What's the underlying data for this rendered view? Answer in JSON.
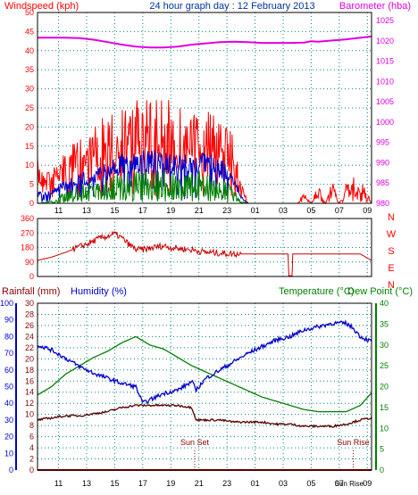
{
  "title": "24 hour graph day : 12 February 2013",
  "colors": {
    "wind_gust": "#ff0000",
    "wind_avg": "#0000cc",
    "wind_low": "#008000",
    "barometer": "#e000e0",
    "direction": "#cc0000",
    "humidity": "#0000cc",
    "temperature": "#008000",
    "dewpoint": "#550000",
    "rainfall": "#aa0000",
    "grid": "#008080",
    "axis_left_top": "#ff0000",
    "axis_left_bottom": "#0000cc",
    "axis_rain": "#880000",
    "axis_right": "#008000"
  },
  "x_ticks": [
    "11",
    "13",
    "15",
    "17",
    "19",
    "21",
    "23",
    "01",
    "03",
    "05",
    "07",
    "09"
  ],
  "chart_data": [
    {
      "type": "line",
      "name": "wind-barometer",
      "left_axis_label": "Windspeed (kph)",
      "right_axis_label": "Barometer (hba)",
      "left_ticks": [
        0,
        5,
        10,
        15,
        20,
        25,
        30,
        35,
        40,
        45,
        50
      ],
      "right_ticks": [
        980,
        985,
        990,
        995,
        1000,
        1005,
        1010,
        1015,
        1020,
        1025
      ],
      "ylim_left": [
        0,
        50
      ],
      "ylim_right": [
        980,
        1027
      ],
      "x_hours_range": [
        9.5,
        33.3
      ],
      "barometer": {
        "x": [
          9.5,
          10.5,
          11.5,
          12.5,
          13.5,
          14.5,
          15.5,
          16.5,
          17.5,
          18.5,
          19.5,
          20.5,
          21.5,
          22.5,
          23.5,
          24.5,
          25.5,
          26.5,
          27.5,
          28.5,
          29.0,
          29.5,
          30.5,
          31.5,
          32.5,
          33.3
        ],
        "y": [
          1020.8,
          1020.8,
          1020.8,
          1020.7,
          1020.3,
          1019.7,
          1019.1,
          1018.6,
          1018.4,
          1018.4,
          1018.6,
          1019.1,
          1019.4,
          1019.7,
          1019.8,
          1019.7,
          1019.5,
          1019.5,
          1019.5,
          1019.6,
          1019.9,
          1019.8,
          1020.1,
          1020.4,
          1020.8,
          1021.1
        ]
      },
      "wind_gust_envelope": {
        "x": [
          9.5,
          10.5,
          11.5,
          12.5,
          13.5,
          14.5,
          15.5,
          16.5,
          17.5,
          18.5,
          19.5,
          20.5,
          21.5,
          22.5,
          23.5,
          24.0,
          24.5,
          25.0,
          26.0,
          27.0,
          28.0,
          28.5,
          29.0,
          29.5,
          30.0,
          30.5,
          31.0,
          31.5,
          32.0,
          32.5,
          33.0,
          33.3
        ],
        "y": [
          12,
          10,
          14,
          17,
          20,
          24,
          26,
          27,
          30,
          28,
          26,
          24,
          25,
          22,
          18,
          6,
          0,
          0,
          0,
          0,
          0,
          3,
          0,
          5,
          0,
          6,
          0,
          5,
          7,
          6,
          3,
          0
        ]
      },
      "wind_avg_envelope": {
        "x": [
          9.5,
          10.5,
          11.5,
          12.5,
          13.5,
          14.5,
          15.5,
          16.5,
          17.5,
          18.5,
          19.5,
          20.5,
          21.5,
          22.5,
          23.5,
          24.0,
          24.5,
          33.3
        ],
        "y": [
          3,
          4,
          6,
          8,
          9,
          11,
          13,
          14,
          14,
          14,
          13,
          13,
          14,
          12,
          8,
          2,
          0,
          0
        ]
      },
      "wind_low_envelope": {
        "x": [
          9.5,
          10.5,
          11.5,
          12.5,
          13.5,
          14.5,
          15.5,
          16.5,
          17.5,
          18.5,
          19.5,
          20.5,
          21.5,
          22.5,
          23.5,
          24.0,
          24.5,
          33.3
        ],
        "y": [
          0,
          1,
          3,
          5,
          6,
          7,
          8,
          9,
          9,
          9,
          8,
          8,
          9,
          7,
          4,
          1,
          0,
          0
        ]
      }
    },
    {
      "type": "line",
      "name": "wind-direction",
      "left_ticks": [
        0,
        90,
        180,
        270,
        360
      ],
      "right_labels": [
        "N",
        "W",
        "S",
        "E",
        "N"
      ],
      "ylim": [
        0,
        360
      ],
      "direction": {
        "x": [
          9.5,
          10.0,
          10.5,
          11.5,
          12.5,
          13.0,
          13.5,
          14.0,
          14.5,
          15.0,
          15.5,
          16.0,
          16.5,
          17.0,
          17.5,
          18.0,
          18.5,
          19.0,
          19.5,
          20.5,
          21.5,
          22.5,
          23.5,
          24.5,
          25.5,
          26.5,
          27.4,
          27.5,
          27.6,
          28.0,
          28.5,
          29.5,
          30.5,
          31.5,
          32.5,
          33.3
        ],
        "y": [
          100,
          110,
          120,
          150,
          185,
          200,
          220,
          240,
          250,
          265,
          240,
          200,
          170,
          165,
          175,
          185,
          190,
          180,
          175,
          165,
          150,
          145,
          140,
          140,
          140,
          140,
          140,
          5,
          140,
          140,
          140,
          140,
          140,
          140,
          140,
          100
        ]
      }
    },
    {
      "type": "line",
      "name": "temp-humidity",
      "left_labels": [
        "Rainfall (mm)",
        "Humidity (%)"
      ],
      "right_labels": [
        "Temperature (°C)",
        "Dew Point (°C)"
      ],
      "humidity_ticks": [
        0,
        10,
        20,
        30,
        40,
        50,
        60,
        70,
        80,
        90,
        100
      ],
      "rain_ticks": [
        0,
        2,
        4,
        6,
        8,
        10,
        12,
        14,
        16,
        18,
        20,
        22,
        24,
        26,
        28,
        30
      ],
      "temp_ticks": [
        0,
        5,
        10,
        15,
        20,
        25,
        30,
        35,
        40
      ],
      "ylim_humidity": [
        0,
        100
      ],
      "ylim_rain": [
        0,
        30
      ],
      "ylim_temp": [
        0,
        40
      ],
      "temperature": {
        "x": [
          9.5,
          10.5,
          11.5,
          12.5,
          13.5,
          14.5,
          15.5,
          16.5,
          17.5,
          18.5,
          19.5,
          20.5,
          21.5,
          22.5,
          23.5,
          24.5,
          25.5,
          26.5,
          27.5,
          28.5,
          29.5,
          30.5,
          31.5,
          32.5,
          33.3
        ],
        "y": [
          18,
          20,
          23,
          25,
          27,
          28.5,
          30.5,
          32,
          30,
          29,
          27,
          25,
          23.5,
          22,
          20.5,
          19,
          17.5,
          16.5,
          15.5,
          14.5,
          14,
          14,
          14,
          15.5,
          18.5
        ]
      },
      "humidity": {
        "x": [
          9.5,
          10.5,
          11.5,
          12.5,
          13.5,
          14.5,
          15.5,
          16.5,
          17.0,
          17.5,
          18.5,
          19.5,
          20.5,
          20.8,
          21.5,
          22.5,
          23.5,
          24.5,
          25.5,
          26.5,
          27.5,
          28.5,
          29.5,
          30.5,
          31.5,
          32.0,
          32.5,
          33.3
        ],
        "y": [
          75,
          72,
          67,
          62,
          58,
          55,
          52,
          50,
          40,
          42,
          46,
          48,
          53,
          48,
          55,
          60,
          65,
          70,
          74,
          78,
          80,
          84,
          86,
          88,
          88,
          85,
          80,
          77
        ]
      },
      "dewpoint": {
        "x": [
          9.5,
          10.5,
          11.5,
          12.5,
          13.5,
          14.5,
          15.5,
          16.5,
          17.5,
          18.5,
          19.5,
          20.5,
          20.8,
          21.5,
          22.5,
          23.5,
          24.5,
          25.5,
          26.5,
          27.5,
          28.5,
          29.5,
          30.5,
          31.5,
          32.5,
          33.3
        ],
        "y": [
          12,
          12.5,
          13,
          13,
          13.5,
          14,
          15,
          15.5,
          15.5,
          15.5,
          15.5,
          15,
          12,
          12,
          12,
          11.5,
          11.5,
          11.5,
          11,
          11,
          10.5,
          10.5,
          10.5,
          11,
          12,
          12.5
        ]
      },
      "rainfall_mm": 0,
      "annotations": [
        {
          "label": "Sun Set",
          "hour": 20.7
        },
        {
          "label": "Sun Rise",
          "hour": 32.0
        }
      ],
      "marker": "Sun Rise"
    }
  ]
}
